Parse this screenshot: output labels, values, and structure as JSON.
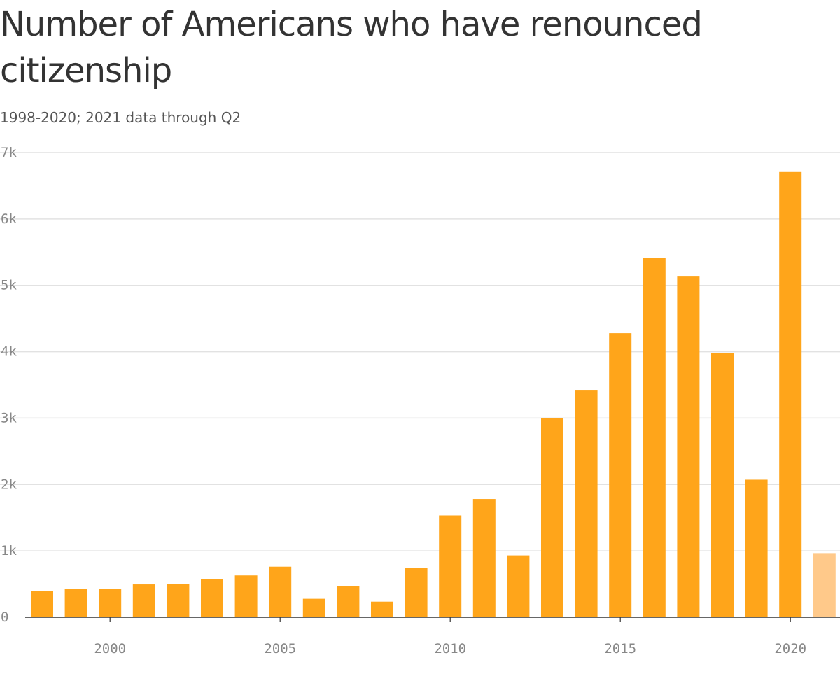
{
  "title": "Number of Americans who have renounced citizenship",
  "subtitle": "1998-2020; 2021 data through Q2",
  "colors": {
    "bar": "#FFA51A",
    "bar_partial": "#FFC98A",
    "grid": "#E2E2E2",
    "axis": "#333333",
    "tick_text": "#888888"
  },
  "chart_data": {
    "type": "bar",
    "title": "Number of Americans who have renounced citizenship",
    "subtitle": "1998-2020; 2021 data through Q2",
    "categories": [
      1998,
      1999,
      2000,
      2001,
      2002,
      2003,
      2004,
      2005,
      2006,
      2007,
      2008,
      2009,
      2010,
      2011,
      2012,
      2013,
      2014,
      2015,
      2016,
      2017,
      2018,
      2019,
      2020,
      2021
    ],
    "values": [
      398,
      430,
      431,
      495,
      503,
      571,
      630,
      762,
      278,
      470,
      235,
      743,
      1534,
      1781,
      932,
      2999,
      3415,
      4279,
      5411,
      5133,
      3983,
      2072,
      6707,
      966
    ],
    "partial_categories": [
      2021
    ],
    "ylim": [
      0,
      7000
    ],
    "yticks": [
      0,
      1000,
      2000,
      3000,
      4000,
      5000,
      6000,
      7000
    ],
    "ytick_labels": [
      "0",
      "1k",
      "2k",
      "3k",
      "4k",
      "5k",
      "6k",
      "7k"
    ],
    "xticks": [
      2000,
      2005,
      2010,
      2015,
      2020
    ],
    "xtick_labels": [
      "2000",
      "2005",
      "2010",
      "2015",
      "2020"
    ],
    "grid": true,
    "xlabel": "",
    "ylabel": ""
  }
}
